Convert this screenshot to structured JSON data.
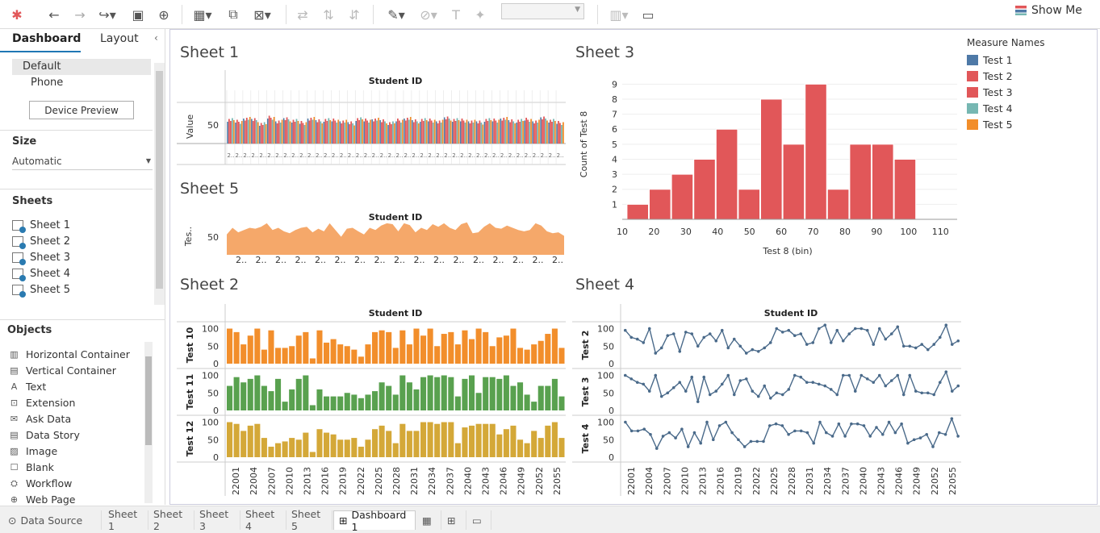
{
  "toolbar": {
    "show_me": "Show Me"
  },
  "left_panel": {
    "tabs": [
      "Dashboard",
      "Layout"
    ],
    "devices": [
      "Default",
      "Phone"
    ],
    "device_preview": "Device Preview",
    "size_title": "Size",
    "size_value": "Automatic",
    "sheets_title": "Sheets",
    "sheets": [
      "Sheet 1",
      "Sheet 2",
      "Sheet 3",
      "Sheet 4",
      "Sheet 5"
    ],
    "objects_title": "Objects",
    "objects": [
      "Horizontal Container",
      "Vertical Container",
      "Text",
      "Extension",
      "Ask Data",
      "Data Story",
      "Image",
      "Blank",
      "Workflow",
      "Web Page"
    ]
  },
  "sheets": {
    "sheet1": {
      "title": "Sheet 1",
      "header": "Student ID",
      "ylabel": "Value",
      "ytick": "50"
    },
    "sheet5": {
      "title": "Sheet 5",
      "header": "Student ID",
      "ylabel": "Tes..",
      "ytick": "50",
      "xtick": "2.."
    },
    "sheet3": {
      "title": "Sheet 3"
    },
    "sheet2": {
      "title": "Sheet 2",
      "header": "Student ID"
    },
    "sheet4": {
      "title": "Sheet 4",
      "header": "Student ID"
    }
  },
  "legend": {
    "title": "Measure Names",
    "items": [
      {
        "label": "Test 1",
        "color": "#4e79a7"
      },
      {
        "label": "Test 2",
        "color": "#e15759"
      },
      {
        "label": "Test 3",
        "color": "#e15759"
      },
      {
        "label": "Test 4",
        "color": "#76b7b2"
      },
      {
        "label": "Test 5",
        "color": "#f28e2b"
      }
    ]
  },
  "chart_data": [
    {
      "type": "bar",
      "id": "sheet3-histogram",
      "title": "Sheet 3",
      "xlabel": "Test 8 (bin)",
      "ylabel": "Count of Test 8",
      "x_ticks": [
        10,
        20,
        30,
        40,
        50,
        60,
        70,
        80,
        90,
        100,
        110
      ],
      "y_ticks": [
        1,
        2,
        3,
        4,
        5,
        6,
        7,
        8,
        9
      ],
      "bins": [
        {
          "x": 15,
          "value": 1
        },
        {
          "x": 22,
          "value": 2
        },
        {
          "x": 29,
          "value": 3
        },
        {
          "x": 36,
          "value": 4
        },
        {
          "x": 43,
          "value": 6
        },
        {
          "x": 50,
          "value": 2
        },
        {
          "x": 57,
          "value": 8
        },
        {
          "x": 64,
          "value": 5
        },
        {
          "x": 71,
          "value": 9
        },
        {
          "x": 78,
          "value": 2
        },
        {
          "x": 85,
          "value": 5
        },
        {
          "x": 92,
          "value": 5
        },
        {
          "x": 99,
          "value": 4
        }
      ],
      "ylim": [
        0,
        9
      ],
      "color": "#e15759"
    },
    {
      "type": "bar",
      "id": "sheet2-bars",
      "title": "Sheet 2",
      "series": [
        {
          "name": "Test 10",
          "color": "#f28e2b",
          "values": [
            100,
            90,
            55,
            80,
            100,
            40,
            95,
            45,
            45,
            50,
            80,
            90,
            15,
            95,
            60,
            70,
            55,
            50,
            40,
            20,
            55,
            90,
            95,
            90,
            45,
            95,
            55,
            100,
            80,
            100,
            50,
            85,
            90,
            55,
            95,
            70,
            100,
            90,
            50,
            75,
            80,
            100,
            45,
            40,
            55,
            65,
            85,
            100,
            45
          ]
        },
        {
          "name": "Test 11",
          "color": "#59a14f",
          "values": [
            70,
            95,
            80,
            90,
            100,
            70,
            55,
            90,
            25,
            60,
            90,
            100,
            15,
            60,
            40,
            40,
            40,
            50,
            45,
            35,
            45,
            55,
            80,
            70,
            45,
            100,
            80,
            60,
            95,
            100,
            95,
            100,
            95,
            40,
            90,
            100,
            50,
            95,
            95,
            90,
            100,
            70,
            80,
            45,
            25,
            70,
            70,
            90,
            40
          ]
        },
        {
          "name": "Test 12",
          "color": "#d4a838",
          "values": [
            100,
            95,
            75,
            90,
            95,
            55,
            30,
            40,
            45,
            55,
            50,
            70,
            15,
            80,
            70,
            65,
            50,
            50,
            55,
            30,
            50,
            80,
            90,
            75,
            40,
            95,
            75,
            75,
            100,
            100,
            95,
            100,
            100,
            40,
            85,
            90,
            95,
            95,
            95,
            65,
            80,
            90,
            50,
            40,
            75,
            55,
            90,
            100,
            55
          ]
        }
      ],
      "x_ticks": [
        "22001",
        "22004",
        "22007",
        "22010",
        "22013",
        "22016",
        "22019",
        "22022",
        "22025",
        "22028",
        "22031",
        "22034",
        "22037",
        "22040",
        "22043",
        "22046",
        "22049",
        "22052",
        "22055"
      ],
      "y_ticks": [
        0,
        50,
        100
      ],
      "ylim": [
        0,
        115
      ]
    },
    {
      "type": "line",
      "id": "sheet4-lines",
      "title": "Sheet 4",
      "series": [
        {
          "name": "Test 2",
          "color": "#4a6a8a",
          "values": [
            95,
            75,
            70,
            60,
            100,
            30,
            45,
            80,
            85,
            35,
            90,
            85,
            50,
            75,
            85,
            65,
            95,
            45,
            70,
            50,
            30,
            40,
            35,
            45,
            60,
            100,
            90,
            95,
            80,
            85,
            55,
            60,
            100,
            110,
            60,
            95,
            65,
            85,
            100,
            100,
            95,
            55,
            100,
            70,
            85,
            105,
            50,
            50,
            45,
            55,
            40,
            55,
            75,
            110,
            55,
            65
          ]
        },
        {
          "name": "Test 3",
          "color": "#4a6a8a",
          "values": [
            100,
            90,
            80,
            75,
            55,
            100,
            40,
            50,
            65,
            80,
            55,
            95,
            25,
            95,
            45,
            55,
            75,
            100,
            45,
            85,
            90,
            55,
            40,
            70,
            35,
            50,
            45,
            60,
            100,
            95,
            80,
            80,
            75,
            70,
            60,
            45,
            100,
            100,
            55,
            100,
            90,
            80,
            100,
            70,
            85,
            100,
            45,
            100,
            55,
            50,
            50,
            45,
            80,
            110,
            55,
            70
          ]
        },
        {
          "name": "Test 4",
          "color": "#4a6a8a",
          "values": [
            100,
            75,
            75,
            80,
            65,
            25,
            60,
            70,
            55,
            80,
            30,
            70,
            40,
            100,
            50,
            90,
            100,
            70,
            50,
            30,
            45,
            45,
            45,
            90,
            95,
            90,
            65,
            75,
            75,
            70,
            40,
            100,
            70,
            60,
            95,
            60,
            95,
            95,
            90,
            60,
            85,
            65,
            100,
            70,
            95,
            40,
            50,
            55,
            65,
            30,
            70,
            65,
            110,
            60
          ]
        }
      ],
      "x_ticks": [
        "22001",
        "22004",
        "22007",
        "22010",
        "22013",
        "22016",
        "22019",
        "22022",
        "22025",
        "22028",
        "22031",
        "22034",
        "22037",
        "22040",
        "22043",
        "22046",
        "22049",
        "22052",
        "22055"
      ],
      "y_ticks": [
        0,
        50,
        100
      ],
      "ylim": [
        0,
        115
      ]
    },
    {
      "type": "area",
      "id": "sheet5-area",
      "title": "Sheet 5",
      "color": "#f5a86a",
      "values": [
        45,
        60,
        50,
        55,
        60,
        58,
        62,
        70,
        55,
        60,
        52,
        48,
        55,
        60,
        62,
        50,
        58,
        52,
        70,
        55,
        40,
        58,
        60,
        52,
        45,
        60,
        55,
        65,
        70,
        68,
        52,
        70,
        66,
        50,
        60,
        55,
        68,
        62,
        70,
        60,
        55,
        68,
        72,
        48,
        50,
        62,
        70,
        60,
        58,
        65,
        60,
        55,
        52,
        55,
        70,
        65,
        52,
        48,
        50,
        42
      ]
    },
    {
      "type": "bar",
      "id": "sheet1-bars",
      "title": "Sheet 1",
      "series_colors": [
        "#4e79a7",
        "#e15759",
        "#e15759",
        "#76b7b2",
        "#f28e2b"
      ],
      "group_values": [
        60,
        55,
        62,
        58,
        50,
        65,
        55,
        60,
        58,
        52,
        62,
        55,
        60,
        58,
        55,
        50,
        62,
        58,
        60,
        55,
        52,
        58,
        62,
        55,
        60,
        58,
        55,
        62,
        60,
        58,
        55,
        52,
        60,
        58,
        62,
        55,
        58,
        60,
        55,
        62,
        58,
        52
      ]
    }
  ],
  "bottom_tabs": {
    "data_source": "Data Source",
    "sheets": [
      "Sheet 1",
      "Sheet 2",
      "Sheet 3",
      "Sheet 4",
      "Sheet 5"
    ],
    "dashboard": "Dashboard 1"
  }
}
